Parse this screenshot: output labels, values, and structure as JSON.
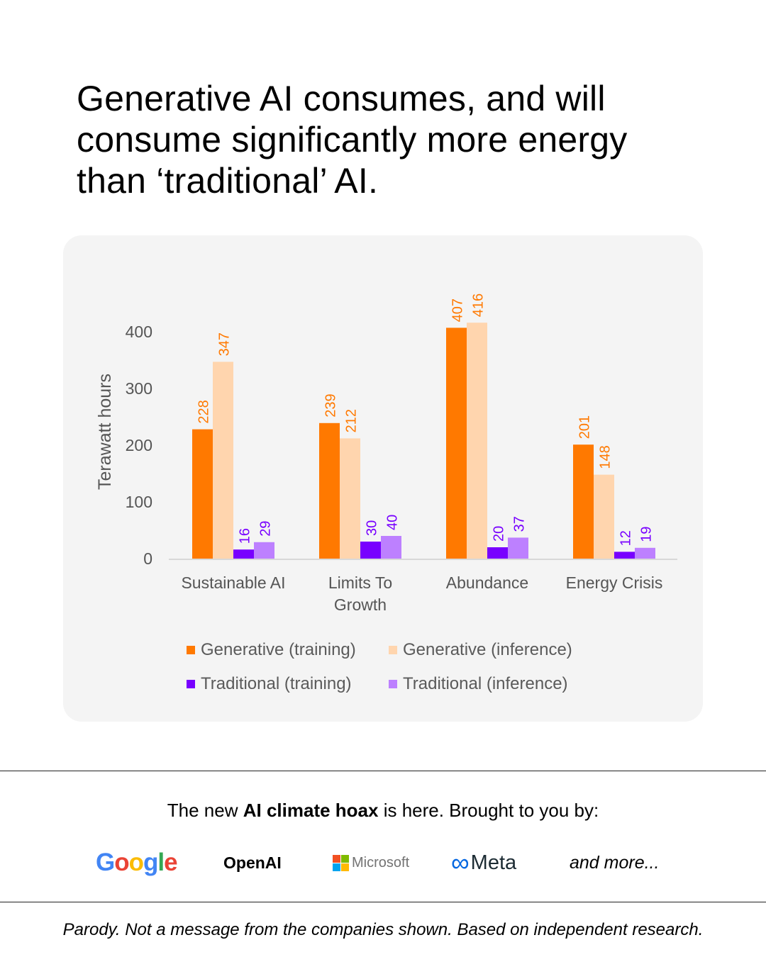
{
  "headline": "Generative AI consumes, and will consume significantly more energy than ‘traditional’ AI.",
  "chart_data": {
    "type": "bar",
    "title": "",
    "xlabel": "",
    "ylabel": "Terawatt hours",
    "ylim": [
      0,
      400
    ],
    "yticks": [
      "0",
      "100",
      "200",
      "300",
      "400"
    ],
    "grid": false,
    "legend_position": "bottom",
    "categories": [
      "Sustainable AI",
      "Limits To Growth",
      "Abundance",
      "Energy Crisis"
    ],
    "category_lines": [
      [
        "Sustainable AI"
      ],
      [
        "Limits To",
        "Growth"
      ],
      [
        "Abundance"
      ],
      [
        "Energy Crisis"
      ]
    ],
    "series": [
      {
        "name": "Generative (training)",
        "color": "#ff7900",
        "label_color": "#ff7900",
        "values": [
          228,
          239,
          407,
          201
        ]
      },
      {
        "name": "Generative (inference)",
        "color": "#ffd5ae",
        "label_color": "#ff7900",
        "values": [
          347,
          212,
          416,
          148
        ]
      },
      {
        "name": "Traditional (training)",
        "color": "#7800ff",
        "label_color": "#7800ff",
        "values": [
          16,
          30,
          20,
          12
        ]
      },
      {
        "name": "Traditional (inference)",
        "color": "#bd80ff",
        "label_color": "#7800ff",
        "values": [
          29,
          40,
          37,
          19
        ]
      }
    ]
  },
  "footer": {
    "tagline_pre": "The new ",
    "tagline_bold": "AI climate hoax",
    "tagline_post": " is here. Brought to you by:",
    "logos": {
      "google": "Google",
      "openai": "OpenAI",
      "microsoft": "Microsoft",
      "meta_symbol": "∞",
      "meta": "Meta",
      "more": "and more..."
    },
    "google_colors": [
      "#4285f4",
      "#ea4335",
      "#fbbc05",
      "#4285f4",
      "#34a853",
      "#ea4335"
    ],
    "microsoft_colors": [
      "#f25022",
      "#7fba00",
      "#00a4ef",
      "#ffb900"
    ],
    "meta_color": "#0668e1",
    "disclaimer": "Parody. Not a message from the companies shown. Based on independent research."
  }
}
